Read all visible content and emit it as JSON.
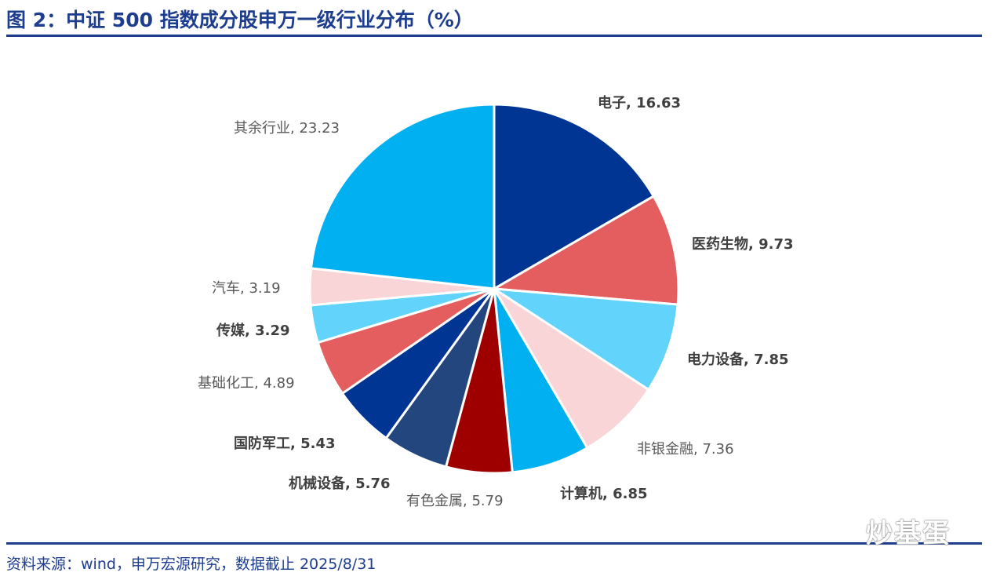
{
  "header": {
    "title": "图 2：中证 500 指数成分股申万一级行业分布（%）"
  },
  "footer": {
    "source": "资料来源：wind，申万宏源研究，数据截止 2025/8/31"
  },
  "watermark": {
    "text": "炒基蛋"
  },
  "chart_data": {
    "type": "pie",
    "title": "中证 500 指数成分股申万一级行业分布（%）",
    "unit": "%",
    "start": "12 o'clock, clockwise",
    "slices": [
      {
        "label": "电子",
        "value": 16.63,
        "text": "电子, 16.63",
        "color": "#003594",
        "bold": true
      },
      {
        "label": "医药生物",
        "value": 9.73,
        "text": "医药生物, 9.73",
        "color": "#E45E5F",
        "bold": true
      },
      {
        "label": "电力设备",
        "value": 7.85,
        "text": "电力设备, 7.85",
        "color": "#62D4FB",
        "bold": true
      },
      {
        "label": "非银金融",
        "value": 7.36,
        "text": "非银金融, 7.36",
        "color": "#F9D5D7",
        "bold": false
      },
      {
        "label": "计算机",
        "value": 6.85,
        "text": "计算机, 6.85",
        "color": "#00B0F0",
        "bold": true
      },
      {
        "label": "有色金属",
        "value": 5.79,
        "text": "有色金属, 5.79",
        "color": "#9E0000",
        "bold": false
      },
      {
        "label": "机械设备",
        "value": 5.76,
        "text": "机械设备, 5.76",
        "color": "#24467E",
        "bold": true
      },
      {
        "label": "国防军工",
        "value": 5.43,
        "text": "国防军工, 5.43",
        "color": "#003594",
        "bold": true
      },
      {
        "label": "基础化工",
        "value": 4.89,
        "text": "基础化工, 4.89",
        "color": "#E45E5F",
        "bold": false
      },
      {
        "label": "传媒",
        "value": 3.29,
        "text": "传媒, 3.29",
        "color": "#62D4FB",
        "bold": true
      },
      {
        "label": "汽车",
        "value": 3.19,
        "text": "汽车, 3.19",
        "color": "#F9D5D7",
        "bold": false
      },
      {
        "label": "其余行业",
        "value": 23.23,
        "text": "其余行业, 23.23",
        "color": "#00B0F0",
        "bold": false
      }
    ]
  }
}
